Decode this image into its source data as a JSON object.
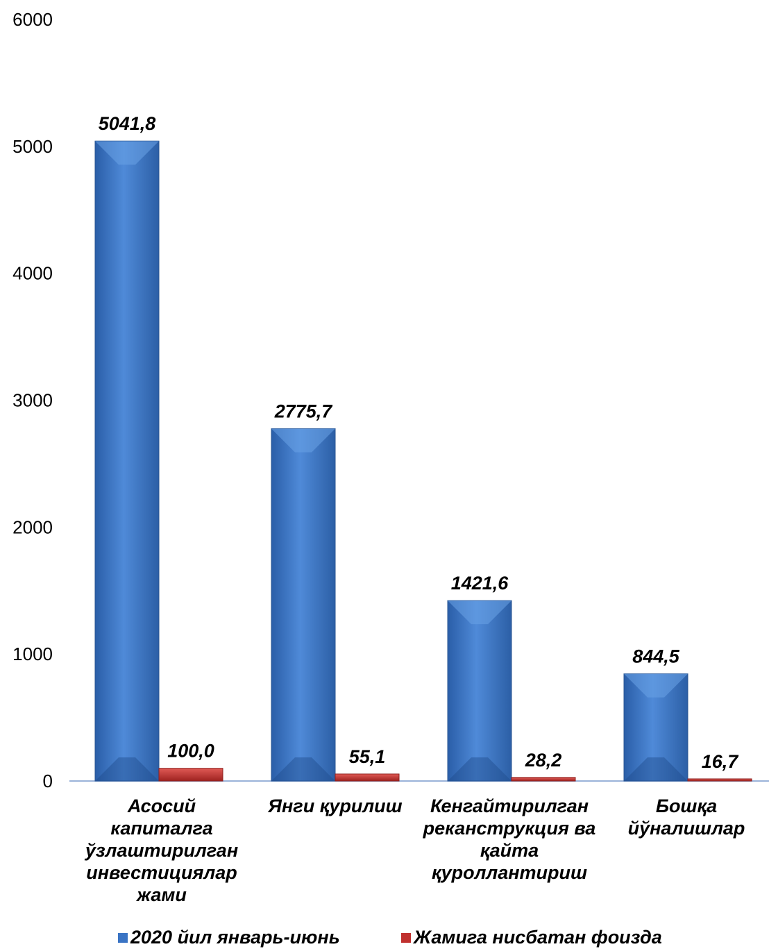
{
  "chart_data": {
    "type": "bar",
    "title": "",
    "xlabel": "",
    "ylabel": "",
    "ylim": [
      0,
      6000
    ],
    "yticks": [
      0,
      1000,
      2000,
      3000,
      4000,
      5000,
      6000
    ],
    "grid": false,
    "legend_position": "bottom",
    "categories": [
      "Асосий капиталга ўзлаштирилган инвестициялар жами",
      "Янги қурилиш",
      "Кенгайтирилган реканструкция ва қайта қуроллантириш",
      "Бошқа йўналишлар"
    ],
    "series": [
      {
        "name": "2020 йил январь-июнь",
        "color": "#3a74c4",
        "values": [
          5041.8,
          2775.7,
          1421.6,
          844.5
        ],
        "labels": [
          "5041,8",
          "2775,7",
          "1421,6",
          "844,5"
        ]
      },
      {
        "name": "Жамига нисбатан фоизда",
        "color": "#c0302e",
        "values": [
          100.0,
          55.1,
          28.2,
          16.7
        ],
        "labels": [
          "100,0",
          "55,1",
          "28,2",
          "16,7"
        ]
      }
    ]
  }
}
